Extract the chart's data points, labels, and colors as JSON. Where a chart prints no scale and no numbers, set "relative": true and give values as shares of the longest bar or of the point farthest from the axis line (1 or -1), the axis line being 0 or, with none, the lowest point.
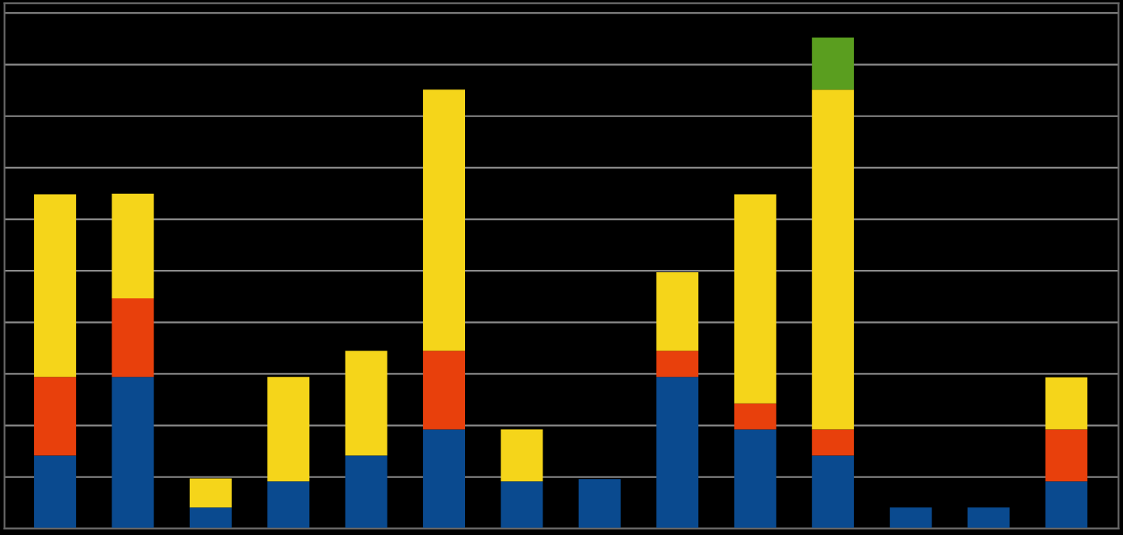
{
  "chart_data": {
    "type": "bar",
    "stacked": true,
    "relative": true,
    "grid": "y",
    "categories": [
      null,
      null,
      null,
      null,
      null,
      null,
      null,
      null,
      null,
      null,
      null,
      null,
      null,
      null
    ],
    "series": [
      {
        "color": "#0a4a8f",
        "values": [
          0.149,
          0.309,
          0.043,
          0.096,
          0.149,
          0.202,
          0.096,
          0.101,
          0.309,
          0.202,
          0.149,
          0.043,
          0.043,
          0.096
        ]
      },
      {
        "color": "#e8400c",
        "values": [
          0.16,
          0.16,
          null,
          null,
          null,
          0.16,
          null,
          null,
          0.053,
          0.053,
          0.053,
          null,
          null,
          0.106
        ]
      },
      {
        "color": "#f5d51a",
        "values": [
          0.372,
          0.213,
          0.059,
          0.213,
          0.213,
          0.532,
          0.106,
          null,
          0.16,
          0.426,
          0.692,
          null,
          null,
          0.106
        ]
      },
      {
        "color": "#5a9e1f",
        "values": [
          null,
          null,
          null,
          null,
          null,
          null,
          null,
          null,
          null,
          null,
          0.106,
          null,
          null,
          null
        ]
      }
    ]
  }
}
